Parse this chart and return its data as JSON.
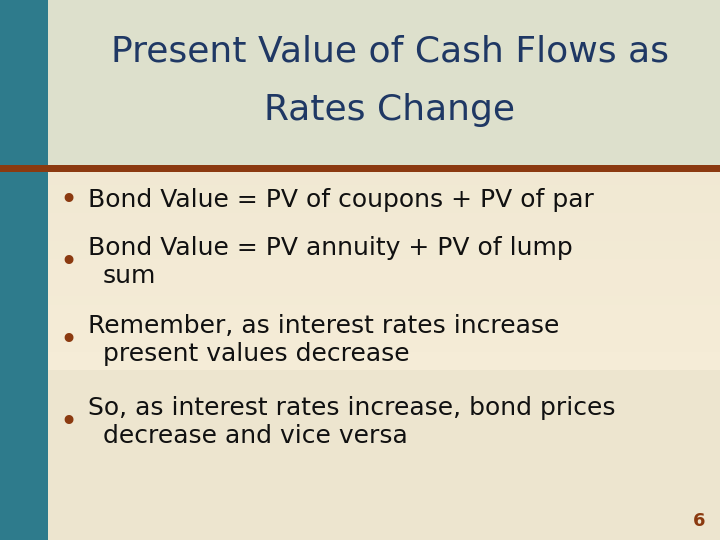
{
  "title_line1": "Present Value of Cash Flows as",
  "title_line2": "Rates Change",
  "title_color": "#1F3864",
  "title_fontsize": 26,
  "title_bg_color": "#DDE0CC",
  "body_bg_top": "#EDE5CF",
  "body_bg_bottom": "#F5ECD7",
  "left_bar_color": "#2E7B8C",
  "divider_color": "#8B3A10",
  "bullet_color": "#8B3A10",
  "bullet_lines": [
    [
      "Bond Value = PV of coupons + PV of par"
    ],
    [
      "Bond Value = PV annuity + PV of lump",
      "sum"
    ],
    [
      "Remember, as interest rates increase",
      "present values decrease"
    ],
    [
      "So, as interest rates increase, bond prices",
      "decrease and vice versa"
    ]
  ],
  "bullet_fontsize": 18,
  "bullet_text_color": "#111111",
  "page_number": "6",
  "page_number_color": "#8B3A10",
  "page_number_fontsize": 13
}
